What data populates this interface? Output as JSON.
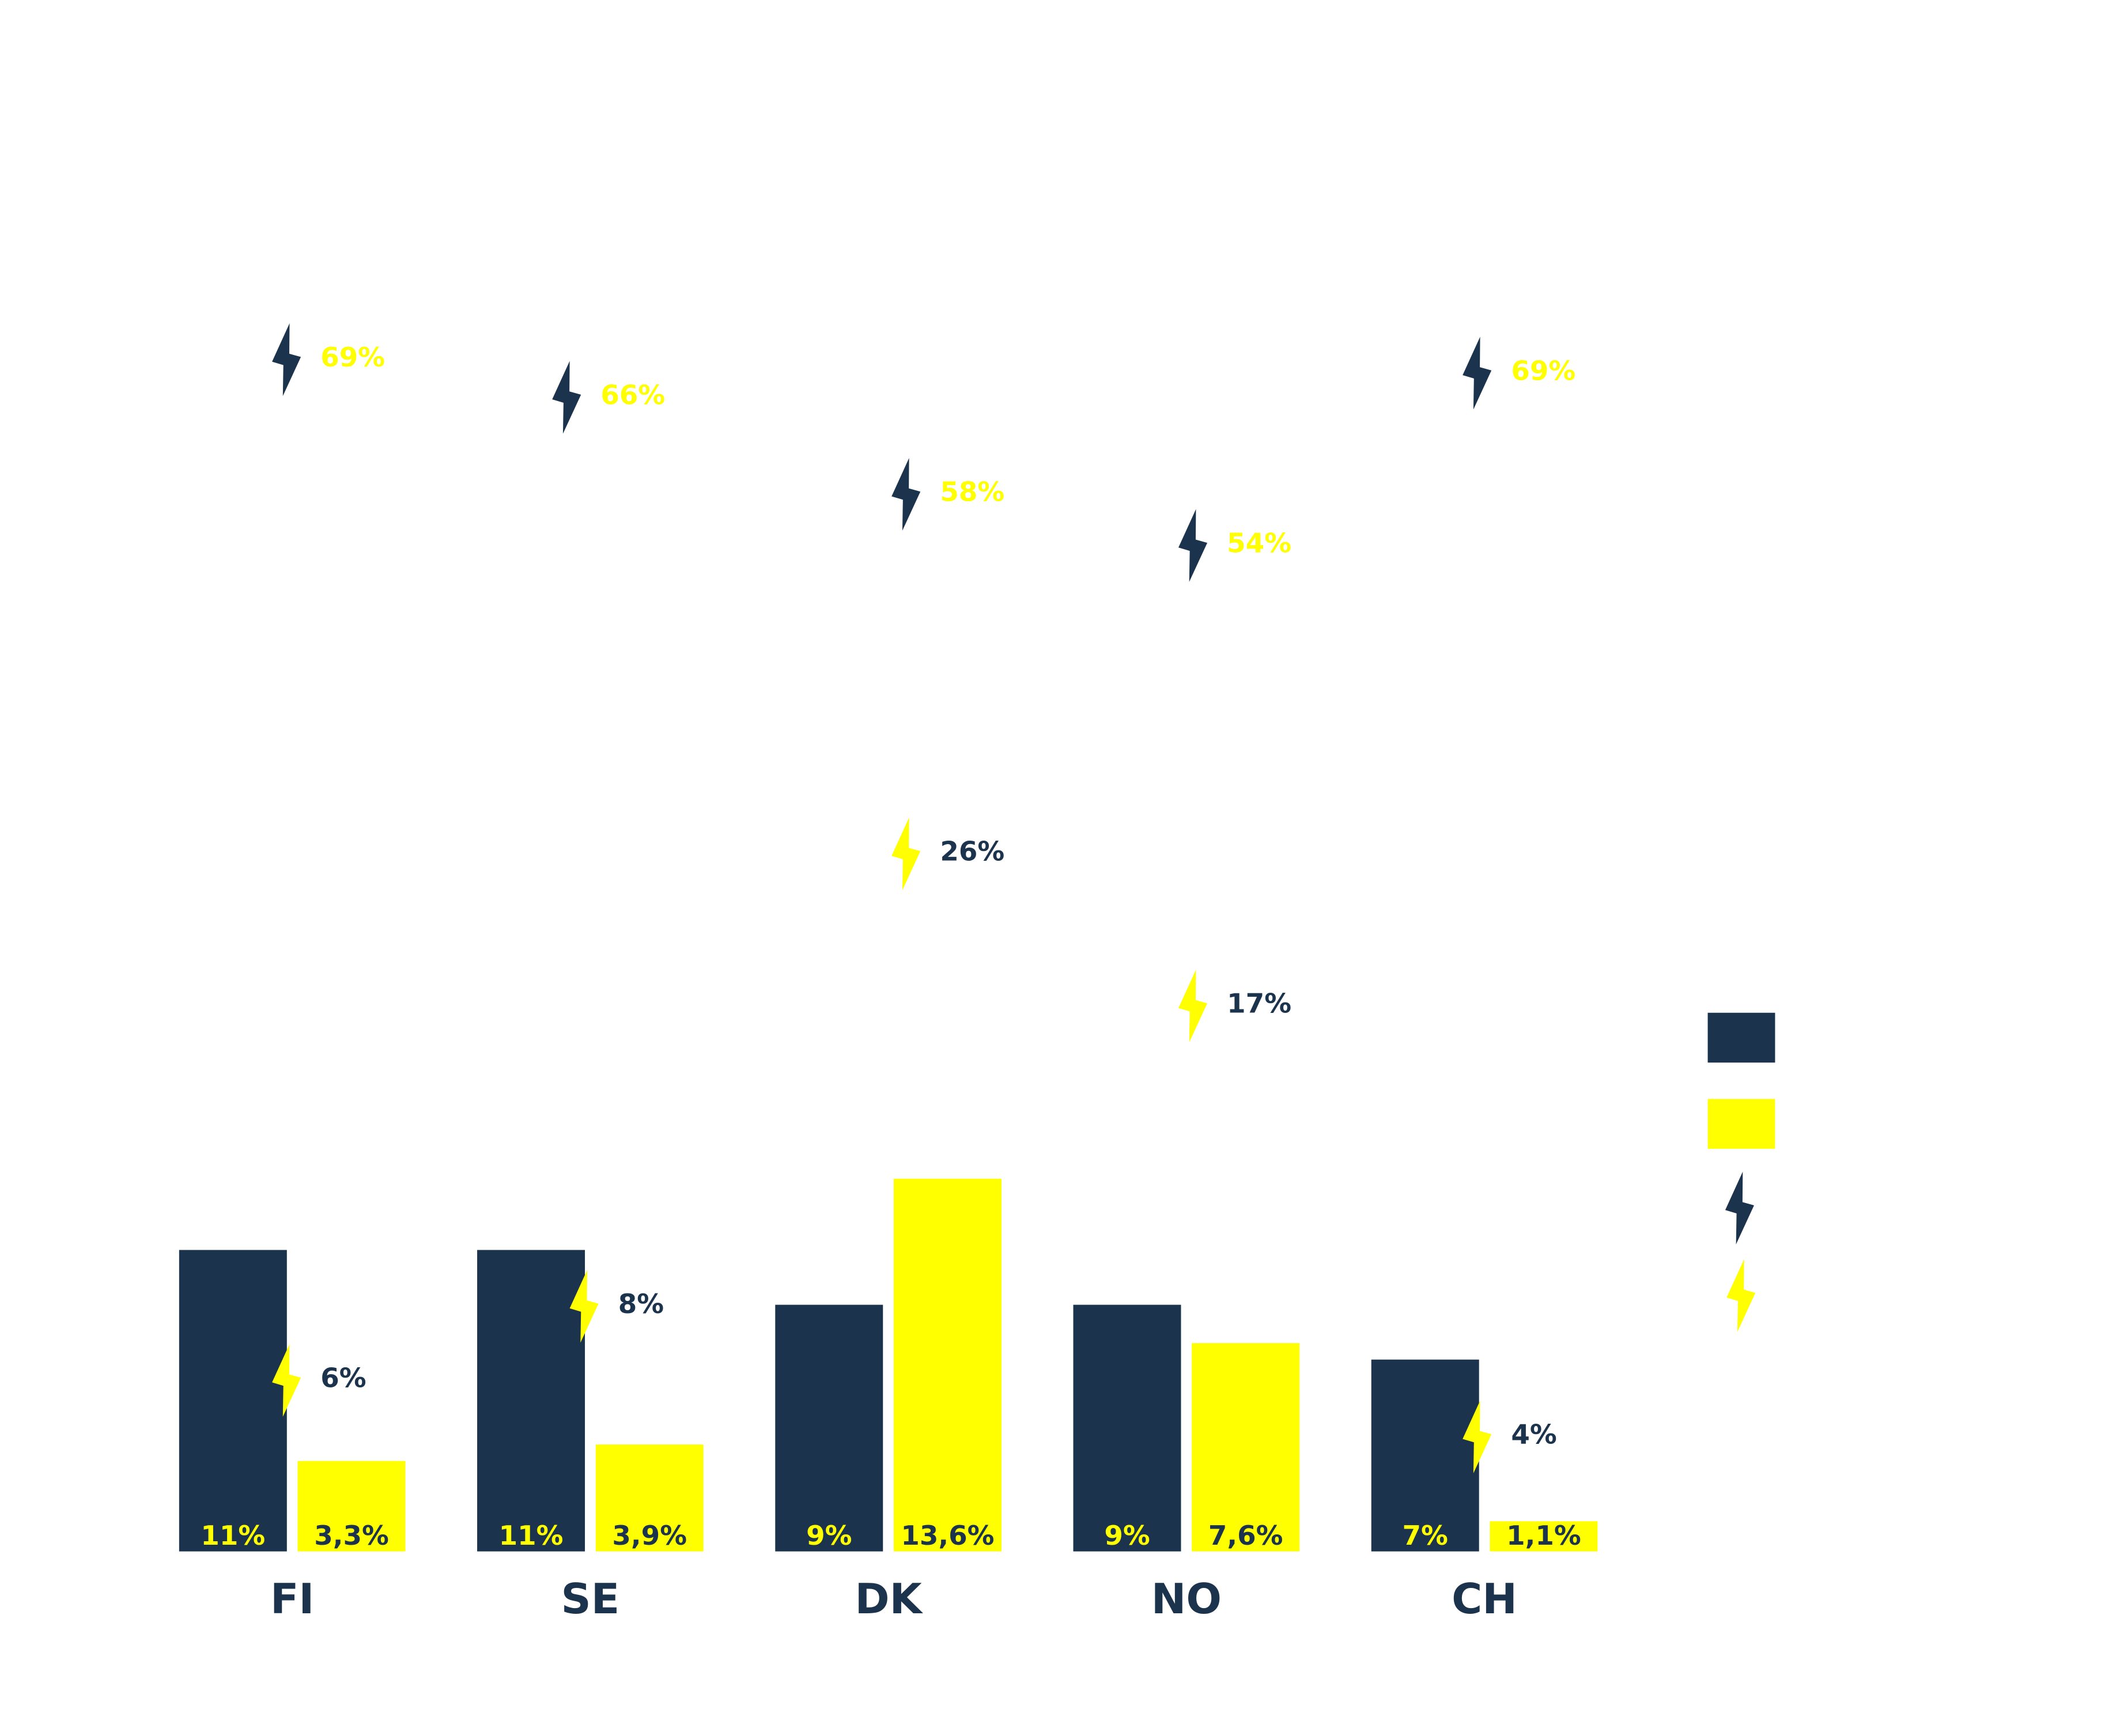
{
  "chart_data": {
    "type": "bar",
    "categories": [
      "FI",
      "SE",
      "DK",
      "NO",
      "CH"
    ],
    "series": [
      {
        "color": "#1b334d",
        "values": [
          11,
          11,
          9,
          9,
          7
        ],
        "labels": [
          "11%",
          "11%",
          "9%",
          "9%",
          "7%"
        ]
      },
      {
        "color": "#ffff00",
        "values": [
          3.3,
          3.9,
          13.6,
          7.6,
          1.1
        ],
        "labels": [
          "3,3%",
          "3,9%",
          "13,6%",
          "7,6%",
          "1,1%"
        ]
      }
    ],
    "markers": [
      {
        "icon": "lightning-bolt-icon",
        "color": "#1b334d",
        "values": [
          69,
          66,
          58,
          54,
          69
        ],
        "labels": [
          "69%",
          "66%",
          "58%",
          "54%",
          "69%"
        ],
        "label_color": "#ffff00"
      },
      {
        "icon": "lightning-bolt-icon",
        "color": "#ffff00",
        "values": [
          6,
          8,
          26,
          17,
          4
        ],
        "labels": [
          "6%",
          "8%",
          "26%",
          "17%",
          "4%"
        ],
        "label_color": "#1b334d"
      }
    ],
    "legend": {
      "placement": "right"
    },
    "grid": false
  }
}
